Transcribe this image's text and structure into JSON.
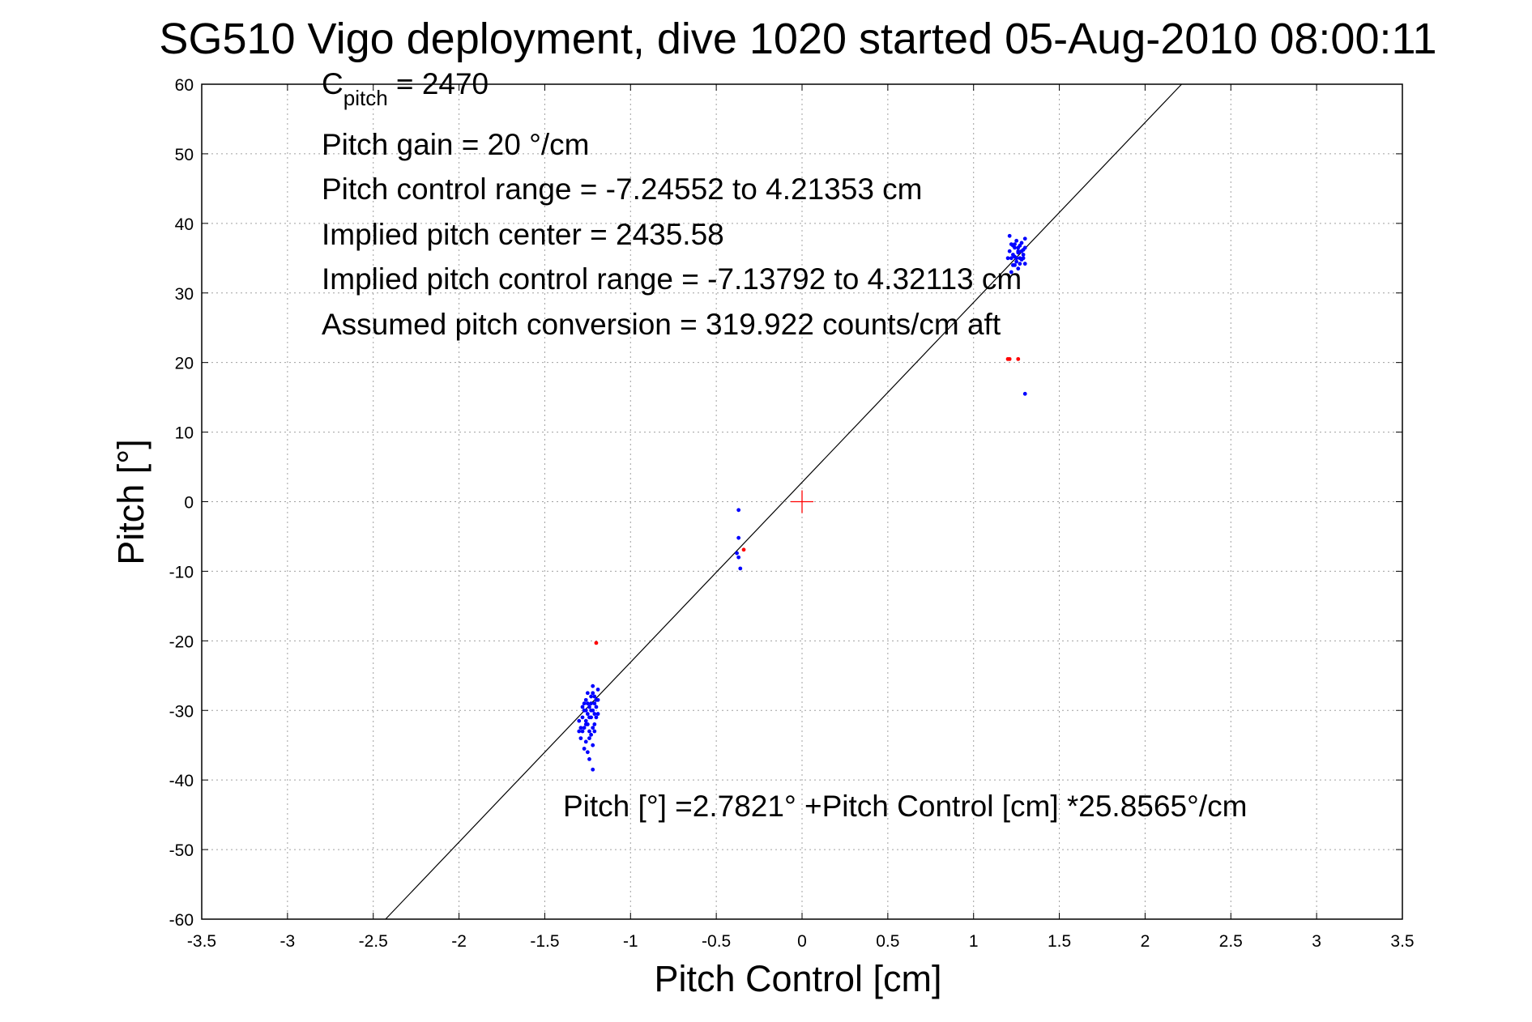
{
  "chart_data": {
    "type": "scatter",
    "title": "SG510 Vigo deployment, dive 1020 started 05-Aug-2010 08:00:11",
    "xlabel": "Pitch Control [cm]",
    "ylabel": "Pitch [°]",
    "xlim": [
      -3.5,
      3.5
    ],
    "ylim": [
      -60,
      60
    ],
    "xticks": [
      -3.5,
      -3,
      -2.5,
      -2,
      -1.5,
      -1,
      -0.5,
      0,
      0.5,
      1,
      1.5,
      2,
      2.5,
      3,
      3.5
    ],
    "xtick_labels": [
      "-3.5",
      "-3",
      "-2.5",
      "-2",
      "-1.5",
      "-1",
      "-0.5",
      "0",
      "0.5",
      "1",
      "1.5",
      "2",
      "2.5",
      "3",
      "3.5"
    ],
    "yticks": [
      60,
      50,
      40,
      30,
      20,
      10,
      0,
      -10,
      -20,
      -30,
      -40,
      -50,
      -60
    ],
    "ytick_labels": [
      "60",
      "50",
      "40",
      "30",
      "20",
      "10",
      "0",
      "-10",
      "-20",
      "-30",
      "-40",
      "-50",
      "-60"
    ],
    "grid": true,
    "annotations": {
      "c_pitch_main": "C",
      "c_pitch_sub": "pitch",
      "c_pitch_value": " = 2470",
      "pitch_gain": "Pitch gain = 20 °/cm",
      "control_range": "Pitch control range = -7.24552 to 4.21353 cm",
      "implied_center": "Implied pitch center = 2435.58",
      "implied_range": "Implied pitch control range = -7.13792 to 4.32113 cm",
      "conversion": "Assumed pitch conversion = 319.922 counts/cm aft",
      "fit_equation": "Pitch [°] =2.7821° +Pitch Control [cm] *25.8565°/cm"
    },
    "fit_line": {
      "intercept": 2.7821,
      "slope": 25.8565,
      "color": "#000000"
    },
    "center_marker": {
      "x": 0,
      "y": 0,
      "color": "#ff0000"
    },
    "series": [
      {
        "color": "#0000ff",
        "points": [
          [
            -1.3,
            -33
          ],
          [
            -1.29,
            -32.5
          ],
          [
            -1.28,
            -31
          ],
          [
            -1.27,
            -30
          ],
          [
            -1.27,
            -29
          ],
          [
            -1.26,
            -28.5
          ],
          [
            -1.26,
            -31.5
          ],
          [
            -1.25,
            -32
          ],
          [
            -1.25,
            -30.5
          ],
          [
            -1.24,
            -29.5
          ],
          [
            -1.24,
            -34
          ],
          [
            -1.23,
            -28
          ],
          [
            -1.23,
            -33.5
          ],
          [
            -1.22,
            -27.5
          ],
          [
            -1.22,
            -30
          ],
          [
            -1.22,
            -35
          ],
          [
            -1.21,
            -29
          ],
          [
            -1.21,
            -32
          ],
          [
            -1.2,
            -28.5
          ],
          [
            -1.2,
            -31
          ],
          [
            -1.19,
            -27
          ],
          [
            -1.19,
            -30.5
          ],
          [
            -1.28,
            -29.5
          ],
          [
            -1.27,
            -32.5
          ],
          [
            -1.26,
            -34.5
          ],
          [
            -1.25,
            -36
          ],
          [
            -1.24,
            -33
          ],
          [
            -1.23,
            -31
          ],
          [
            -1.22,
            -26.5
          ],
          [
            -1.21,
            -28
          ],
          [
            -1.3,
            -31.5
          ],
          [
            -1.29,
            -34
          ],
          [
            -1.28,
            -33
          ],
          [
            -1.27,
            -35.5
          ],
          [
            -1.26,
            -30
          ],
          [
            -1.25,
            -29
          ],
          [
            -1.24,
            -31
          ],
          [
            -1.23,
            -30
          ],
          [
            -1.22,
            -32.5
          ],
          [
            -1.21,
            -30.5
          ],
          [
            -1.2,
            -29.5
          ],
          [
            -1.19,
            -28.5
          ],
          [
            -1.24,
            -37
          ],
          [
            -1.22,
            -38.5
          ],
          [
            -1.26,
            -32
          ],
          [
            -1.23,
            -29
          ],
          [
            -1.25,
            -27.5
          ],
          [
            -1.21,
            -33
          ],
          [
            -0.37,
            -1.2
          ],
          [
            -0.37,
            -5.2
          ],
          [
            -0.37,
            -8
          ],
          [
            -0.36,
            -9.6
          ],
          [
            -0.38,
            -7.4
          ],
          [
            1.21,
            36
          ],
          [
            1.22,
            35
          ],
          [
            1.22,
            37
          ],
          [
            1.23,
            35.5
          ],
          [
            1.23,
            34
          ],
          [
            1.24,
            36.5
          ],
          [
            1.24,
            35.2
          ],
          [
            1.25,
            34.5
          ],
          [
            1.25,
            37.5
          ],
          [
            1.26,
            36
          ],
          [
            1.26,
            33.5
          ],
          [
            1.27,
            35
          ],
          [
            1.27,
            36.8
          ],
          [
            1.28,
            34.8
          ],
          [
            1.28,
            37.2
          ],
          [
            1.29,
            35.5
          ],
          [
            1.29,
            36.2
          ],
          [
            1.3,
            34.2
          ],
          [
            1.3,
            37.8
          ],
          [
            1.2,
            35
          ],
          [
            1.21,
            38.2
          ],
          [
            1.22,
            33
          ],
          [
            1.24,
            34
          ],
          [
            1.26,
            35.8
          ],
          [
            1.27,
            34.2
          ],
          [
            1.28,
            36
          ],
          [
            1.25,
            35
          ],
          [
            1.23,
            36.8
          ],
          [
            1.29,
            35
          ],
          [
            1.3,
            36.5
          ],
          [
            1.24,
            37
          ],
          [
            1.26,
            36.5
          ],
          [
            1.3,
            15.5
          ]
        ]
      },
      {
        "color": "#ff0000",
        "points": [
          [
            -1.2,
            -20.3
          ],
          [
            -0.34,
            -6.9
          ],
          [
            1.2,
            20.5
          ],
          [
            1.21,
            20.5
          ],
          [
            1.26,
            20.5
          ]
        ]
      }
    ]
  }
}
